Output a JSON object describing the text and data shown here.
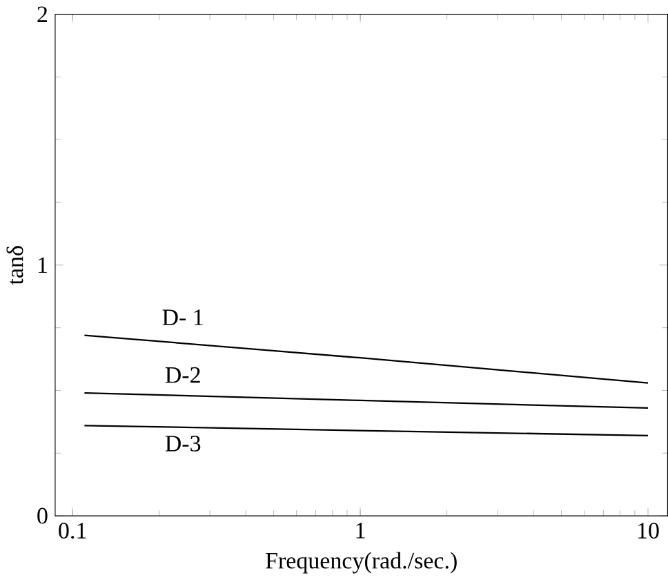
{
  "chart_data": {
    "type": "line",
    "xlabel": "Frequency(rad./sec.)",
    "ylabel": "tanδ",
    "log": "x",
    "xlim": [
      0.087,
      11.7
    ],
    "ylim": [
      0,
      2
    ],
    "xticks": [
      0.1,
      1,
      10
    ],
    "yticks": [
      0,
      1,
      2
    ],
    "grid": false,
    "legend": false,
    "marker": "none",
    "line_style": "solid",
    "series": [
      {
        "name": "D- 1",
        "color": "#000000",
        "x": [
          0.11,
          1,
          10
        ],
        "values": [
          0.72,
          0.63,
          0.53
        ]
      },
      {
        "name": "D-2",
        "color": "#000000",
        "x": [
          0.11,
          1,
          10
        ],
        "values": [
          0.49,
          0.46,
          0.43
        ]
      },
      {
        "name": "D-3",
        "color": "#000000",
        "x": [
          0.11,
          1,
          10
        ],
        "values": [
          0.36,
          0.34,
          0.32
        ]
      }
    ]
  }
}
